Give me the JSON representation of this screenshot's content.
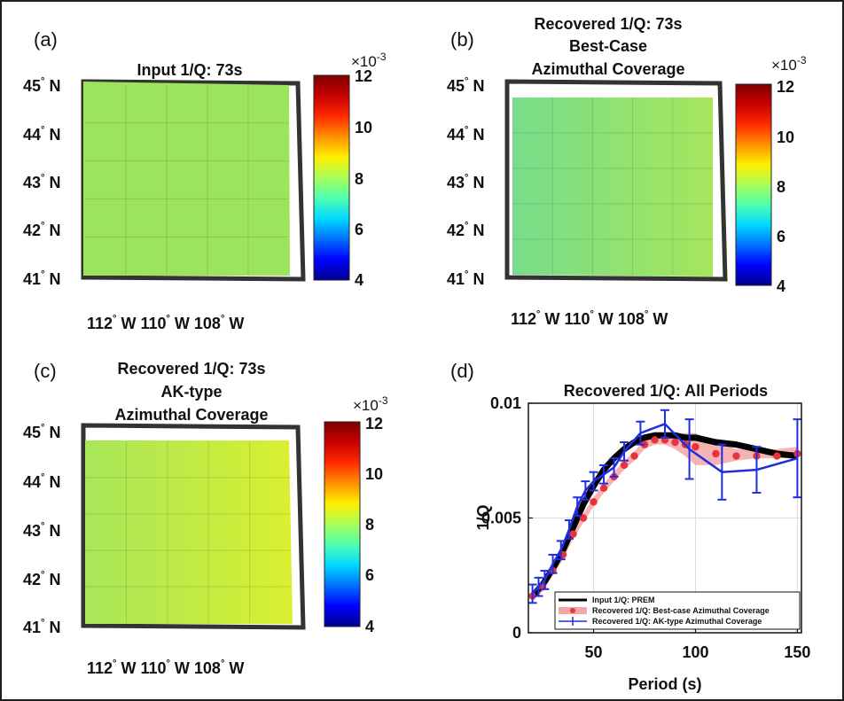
{
  "colors": {
    "input_map_fill": "#9ae35b",
    "prem_line": "#000000",
    "best_case": "#e8323c",
    "best_case_band": "#f4a6a6",
    "ak_type": "#1f2ee0",
    "colormap": [
      "#00008f",
      "#0000ff",
      "#0070ff",
      "#00d9ff",
      "#4fffb0",
      "#a7ff58",
      "#ffef00",
      "#ff9000",
      "#ff2a00",
      "#c80000",
      "#800000"
    ]
  },
  "maps": [
    {
      "letter": "(a)",
      "title_lines": [
        "Input 1/Q: 73s"
      ],
      "fill": "#9be45c",
      "gradient": false
    },
    {
      "letter": "(b)",
      "title_lines": [
        "Recovered 1/Q: 73s",
        "Best-Case",
        "Azimuthal Coverage"
      ],
      "fill": "#84e07a",
      "gradient": true,
      "gradient_from": "#78dd8a",
      "gradient_to": "#a6e65c"
    },
    {
      "letter": "(c)",
      "title_lines": [
        "Recovered 1/Q: 73s",
        "AK-type",
        "Azimuthal Coverage"
      ],
      "fill": "#c3ec3e",
      "gradient": true,
      "gradient_from": "#a8e65a",
      "gradient_to": "#d9f030"
    }
  ],
  "map_axes": {
    "lat_labels": [
      "45",
      "44",
      "43",
      "42",
      "41"
    ],
    "lat_suffix": "N",
    "lon_labels": [
      "112",
      "110",
      "108"
    ],
    "lon_suffix": "W"
  },
  "colorbar": {
    "multiplier": "×10",
    "exponent": "-3",
    "ticks": [
      "12",
      "10",
      "8",
      "6",
      "4"
    ],
    "range": [
      4,
      12
    ]
  },
  "chart_data": {
    "letter": "(d)",
    "type": "line",
    "title": "Recovered 1/Q: All Periods",
    "xlabel": "Period (s)",
    "ylabel": "1/Q",
    "xlim": [
      18,
      152
    ],
    "ylim": [
      0,
      0.01
    ],
    "xticks": [
      "50",
      "100",
      "150"
    ],
    "xtick_values": [
      50,
      100,
      150
    ],
    "yticks": [
      "0",
      "0.005",
      "0.01"
    ],
    "ytick_values": [
      0,
      0.005,
      0.01
    ],
    "grid": true,
    "legend_position": "bottom-right",
    "series": [
      {
        "name": "Input 1/Q: PREM",
        "style": "line",
        "x": [
          20,
          25,
          30,
          35,
          40,
          45,
          50,
          55,
          60,
          65,
          70,
          75,
          80,
          85,
          90,
          95,
          100,
          110,
          120,
          130,
          140,
          150
        ],
        "y": [
          0.0016,
          0.0021,
          0.0028,
          0.0036,
          0.0046,
          0.0056,
          0.0064,
          0.0071,
          0.0076,
          0.008,
          0.0083,
          0.0085,
          0.0086,
          0.0086,
          0.0086,
          0.0085,
          0.0085,
          0.0083,
          0.0082,
          0.008,
          0.0078,
          0.0077
        ]
      },
      {
        "name": "Recovered 1/Q: Best-case Azimuthal Coverage",
        "style": "points+band",
        "x": [
          20,
          25,
          30,
          35,
          40,
          45,
          50,
          55,
          60,
          65,
          70,
          75,
          80,
          85,
          90,
          95,
          100,
          110,
          120,
          130,
          140,
          150
        ],
        "y": [
          0.0016,
          0.002,
          0.0027,
          0.0034,
          0.0043,
          0.005,
          0.0057,
          0.0063,
          0.0068,
          0.0073,
          0.0077,
          0.0082,
          0.0084,
          0.0084,
          0.0083,
          0.0082,
          0.0081,
          0.0078,
          0.0077,
          0.0077,
          0.0077,
          0.0078
        ],
        "band_low": [
          0.0014,
          0.0018,
          0.0025,
          0.0032,
          0.0041,
          0.0048,
          0.0055,
          0.0061,
          0.0066,
          0.0071,
          0.0075,
          0.008,
          0.0082,
          0.0082,
          0.008,
          0.0077,
          0.0073,
          0.0073,
          0.0075,
          0.0076,
          0.0076,
          0.0076
        ],
        "band_high": [
          0.0018,
          0.0022,
          0.0029,
          0.0036,
          0.0045,
          0.0052,
          0.0059,
          0.0065,
          0.007,
          0.0075,
          0.0079,
          0.0084,
          0.0086,
          0.0086,
          0.0086,
          0.0087,
          0.0087,
          0.0083,
          0.008,
          0.008,
          0.008,
          0.0081
        ]
      },
      {
        "name": "Recovered 1/Q: AK-type Azimuthal Coverage",
        "style": "line+errorbars",
        "x": [
          20,
          23,
          26,
          30,
          34,
          38,
          42,
          46,
          50,
          55,
          60,
          65,
          73,
          85,
          97,
          113,
          130,
          150
        ],
        "y": [
          0.0017,
          0.002,
          0.0023,
          0.003,
          0.0036,
          0.0045,
          0.0055,
          0.0062,
          0.0066,
          0.0069,
          0.0072,
          0.0079,
          0.0087,
          0.0091,
          0.008,
          0.007,
          0.0071,
          0.0076
        ],
        "err": [
          0.0004,
          0.0004,
          0.0004,
          0.0004,
          0.0004,
          0.0004,
          0.0004,
          0.0004,
          0.0004,
          0.0004,
          0.0004,
          0.0004,
          0.0005,
          0.0006,
          0.0013,
          0.0012,
          0.001,
          0.0017
        ]
      }
    ]
  }
}
